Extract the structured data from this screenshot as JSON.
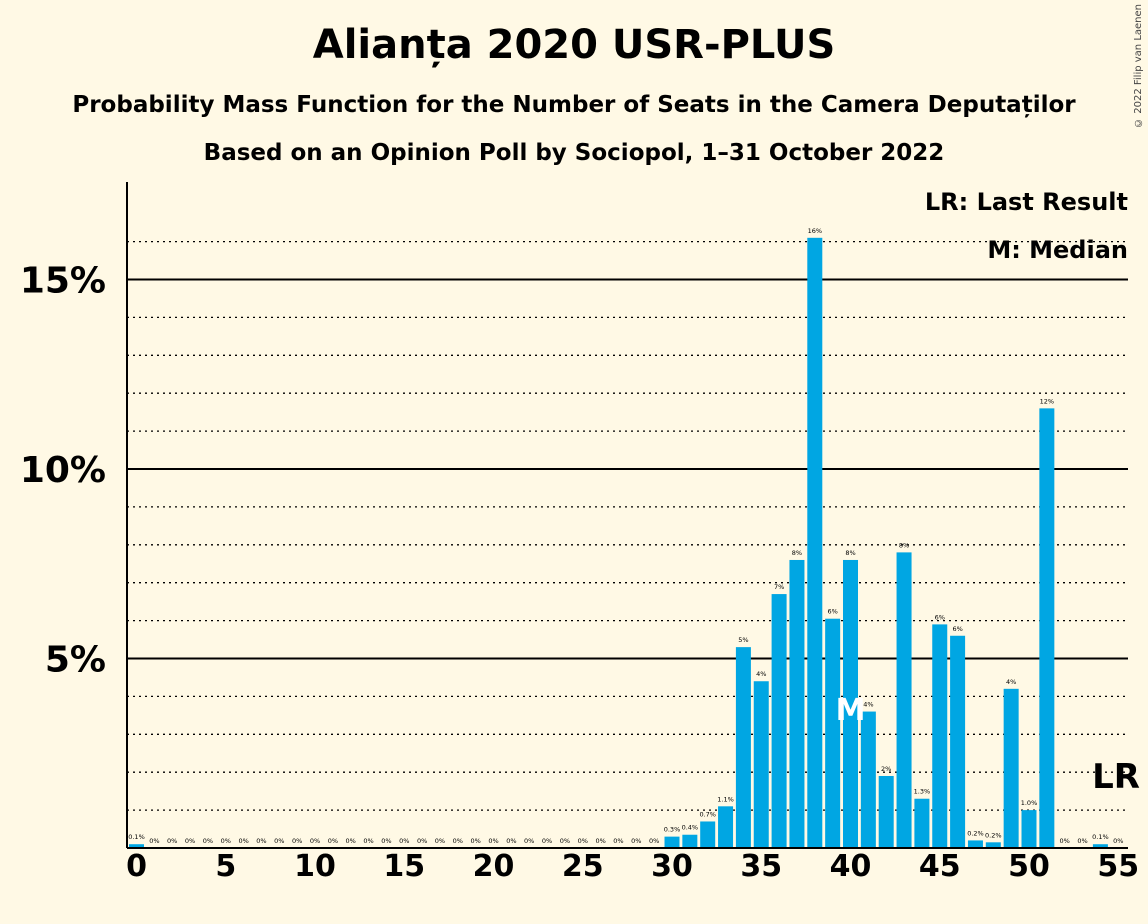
{
  "title": "Alianța 2020 USR-PLUS",
  "subtitle": "Probability Mass Function for the Number of Seats in the Camera Deputaților",
  "subtitle2": "Based on an Opinion Poll by Sociopol, 1–31 October 2022",
  "copyright": "© 2022 Filip van Laenen",
  "legend": {
    "last_result": "LR: Last Result",
    "median": "M: Median"
  },
  "markers": {
    "median_seat": 40,
    "median_label": "M",
    "last_result_seat": 55,
    "last_result_label": "LR"
  },
  "colors": {
    "bar": "#00a6e3",
    "background": "#fff9e5",
    "axis": "#000000"
  },
  "chart_data": {
    "type": "bar",
    "x": [
      0,
      1,
      2,
      3,
      4,
      5,
      6,
      7,
      8,
      9,
      10,
      11,
      12,
      13,
      14,
      15,
      16,
      17,
      18,
      19,
      20,
      21,
      22,
      23,
      24,
      25,
      26,
      27,
      28,
      29,
      30,
      31,
      32,
      33,
      34,
      35,
      36,
      37,
      38,
      39,
      40,
      41,
      42,
      43,
      44,
      45,
      46,
      47,
      48,
      49,
      50,
      51,
      52,
      53,
      54,
      55
    ],
    "values": [
      0.1,
      0,
      0,
      0,
      0,
      0,
      0,
      0,
      0,
      0,
      0,
      0,
      0,
      0,
      0,
      0,
      0,
      0,
      0,
      0,
      0,
      0,
      0,
      0,
      0,
      0,
      0,
      0,
      0,
      0,
      0.3,
      0.35,
      0.7,
      1.1,
      5.3,
      4.4,
      6.7,
      7.6,
      16.1,
      6.05,
      7.6,
      3.6,
      1.9,
      7.8,
      1.3,
      5.9,
      5.6,
      0.2,
      0.15,
      4.2,
      1.0,
      11.6,
      0,
      0,
      0.1,
      0
    ],
    "labels": [
      "0.1%",
      "0%",
      "0%",
      "0%",
      "0%",
      "0%",
      "0%",
      "0%",
      "0%",
      "0%",
      "0%",
      "0%",
      "0%",
      "0%",
      "0%",
      "0%",
      "0%",
      "0%",
      "0%",
      "0%",
      "0%",
      "0%",
      "0%",
      "0%",
      "0%",
      "0%",
      "0%",
      "0%",
      "0%",
      "0%",
      "0.3%",
      "0.4%",
      "0.7%",
      "1.1%",
      "5%",
      "4%",
      "7%",
      "8%",
      "16%",
      "6%",
      "8%",
      "4%",
      "2%",
      "8%",
      "1.3%",
      "6%",
      "6%",
      "0.2%",
      "0.2%",
      "4%",
      "1.0%",
      "12%",
      "0%",
      "0%",
      "0.1%",
      "0%"
    ],
    "x_ticks": [
      0,
      5,
      10,
      15,
      20,
      25,
      30,
      35,
      40,
      45,
      50,
      55
    ],
    "y_ticks": [
      5,
      10,
      15
    ],
    "y_tick_labels": [
      "5%",
      "10%",
      "15%"
    ],
    "ylim": [
      0,
      17.5
    ],
    "xlabel": "",
    "ylabel": "",
    "grid": true
  }
}
